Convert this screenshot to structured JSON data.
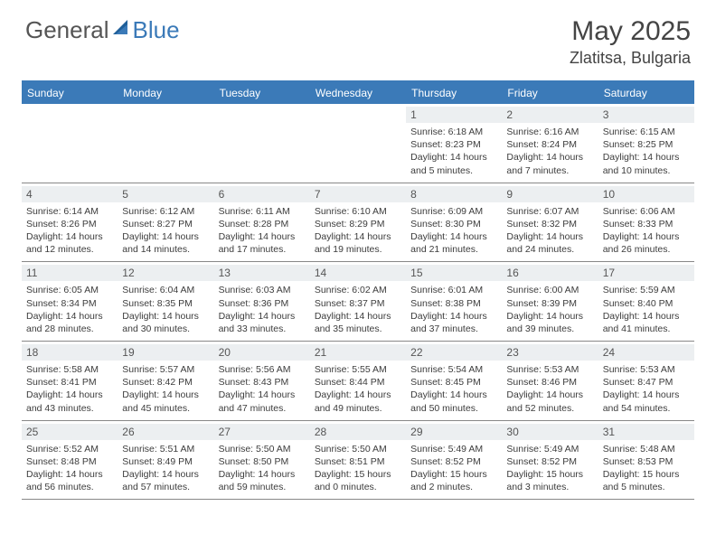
{
  "brand": {
    "left": "General",
    "right": "Blue"
  },
  "title": "May 2025",
  "location": "Zlatitsa, Bulgaria",
  "colors": {
    "header_bar": "#3b7ab8",
    "daynum_bg": "#eceff1",
    "text": "#333333",
    "row_border": "#888888",
    "background": "#ffffff"
  },
  "layout": {
    "columns": 7,
    "weeks": 5
  },
  "weekdays": [
    "Sunday",
    "Monday",
    "Tuesday",
    "Wednesday",
    "Thursday",
    "Friday",
    "Saturday"
  ],
  "days": [
    null,
    null,
    null,
    null,
    {
      "n": "1",
      "sr": "Sunrise: 6:18 AM",
      "ss": "Sunset: 8:23 PM",
      "d1": "Daylight: 14 hours",
      "d2": "and 5 minutes."
    },
    {
      "n": "2",
      "sr": "Sunrise: 6:16 AM",
      "ss": "Sunset: 8:24 PM",
      "d1": "Daylight: 14 hours",
      "d2": "and 7 minutes."
    },
    {
      "n": "3",
      "sr": "Sunrise: 6:15 AM",
      "ss": "Sunset: 8:25 PM",
      "d1": "Daylight: 14 hours",
      "d2": "and 10 minutes."
    },
    {
      "n": "4",
      "sr": "Sunrise: 6:14 AM",
      "ss": "Sunset: 8:26 PM",
      "d1": "Daylight: 14 hours",
      "d2": "and 12 minutes."
    },
    {
      "n": "5",
      "sr": "Sunrise: 6:12 AM",
      "ss": "Sunset: 8:27 PM",
      "d1": "Daylight: 14 hours",
      "d2": "and 14 minutes."
    },
    {
      "n": "6",
      "sr": "Sunrise: 6:11 AM",
      "ss": "Sunset: 8:28 PM",
      "d1": "Daylight: 14 hours",
      "d2": "and 17 minutes."
    },
    {
      "n": "7",
      "sr": "Sunrise: 6:10 AM",
      "ss": "Sunset: 8:29 PM",
      "d1": "Daylight: 14 hours",
      "d2": "and 19 minutes."
    },
    {
      "n": "8",
      "sr": "Sunrise: 6:09 AM",
      "ss": "Sunset: 8:30 PM",
      "d1": "Daylight: 14 hours",
      "d2": "and 21 minutes."
    },
    {
      "n": "9",
      "sr": "Sunrise: 6:07 AM",
      "ss": "Sunset: 8:32 PM",
      "d1": "Daylight: 14 hours",
      "d2": "and 24 minutes."
    },
    {
      "n": "10",
      "sr": "Sunrise: 6:06 AM",
      "ss": "Sunset: 8:33 PM",
      "d1": "Daylight: 14 hours",
      "d2": "and 26 minutes."
    },
    {
      "n": "11",
      "sr": "Sunrise: 6:05 AM",
      "ss": "Sunset: 8:34 PM",
      "d1": "Daylight: 14 hours",
      "d2": "and 28 minutes."
    },
    {
      "n": "12",
      "sr": "Sunrise: 6:04 AM",
      "ss": "Sunset: 8:35 PM",
      "d1": "Daylight: 14 hours",
      "d2": "and 30 minutes."
    },
    {
      "n": "13",
      "sr": "Sunrise: 6:03 AM",
      "ss": "Sunset: 8:36 PM",
      "d1": "Daylight: 14 hours",
      "d2": "and 33 minutes."
    },
    {
      "n": "14",
      "sr": "Sunrise: 6:02 AM",
      "ss": "Sunset: 8:37 PM",
      "d1": "Daylight: 14 hours",
      "d2": "and 35 minutes."
    },
    {
      "n": "15",
      "sr": "Sunrise: 6:01 AM",
      "ss": "Sunset: 8:38 PM",
      "d1": "Daylight: 14 hours",
      "d2": "and 37 minutes."
    },
    {
      "n": "16",
      "sr": "Sunrise: 6:00 AM",
      "ss": "Sunset: 8:39 PM",
      "d1": "Daylight: 14 hours",
      "d2": "and 39 minutes."
    },
    {
      "n": "17",
      "sr": "Sunrise: 5:59 AM",
      "ss": "Sunset: 8:40 PM",
      "d1": "Daylight: 14 hours",
      "d2": "and 41 minutes."
    },
    {
      "n": "18",
      "sr": "Sunrise: 5:58 AM",
      "ss": "Sunset: 8:41 PM",
      "d1": "Daylight: 14 hours",
      "d2": "and 43 minutes."
    },
    {
      "n": "19",
      "sr": "Sunrise: 5:57 AM",
      "ss": "Sunset: 8:42 PM",
      "d1": "Daylight: 14 hours",
      "d2": "and 45 minutes."
    },
    {
      "n": "20",
      "sr": "Sunrise: 5:56 AM",
      "ss": "Sunset: 8:43 PM",
      "d1": "Daylight: 14 hours",
      "d2": "and 47 minutes."
    },
    {
      "n": "21",
      "sr": "Sunrise: 5:55 AM",
      "ss": "Sunset: 8:44 PM",
      "d1": "Daylight: 14 hours",
      "d2": "and 49 minutes."
    },
    {
      "n": "22",
      "sr": "Sunrise: 5:54 AM",
      "ss": "Sunset: 8:45 PM",
      "d1": "Daylight: 14 hours",
      "d2": "and 50 minutes."
    },
    {
      "n": "23",
      "sr": "Sunrise: 5:53 AM",
      "ss": "Sunset: 8:46 PM",
      "d1": "Daylight: 14 hours",
      "d2": "and 52 minutes."
    },
    {
      "n": "24",
      "sr": "Sunrise: 5:53 AM",
      "ss": "Sunset: 8:47 PM",
      "d1": "Daylight: 14 hours",
      "d2": "and 54 minutes."
    },
    {
      "n": "25",
      "sr": "Sunrise: 5:52 AM",
      "ss": "Sunset: 8:48 PM",
      "d1": "Daylight: 14 hours",
      "d2": "and 56 minutes."
    },
    {
      "n": "26",
      "sr": "Sunrise: 5:51 AM",
      "ss": "Sunset: 8:49 PM",
      "d1": "Daylight: 14 hours",
      "d2": "and 57 minutes."
    },
    {
      "n": "27",
      "sr": "Sunrise: 5:50 AM",
      "ss": "Sunset: 8:50 PM",
      "d1": "Daylight: 14 hours",
      "d2": "and 59 minutes."
    },
    {
      "n": "28",
      "sr": "Sunrise: 5:50 AM",
      "ss": "Sunset: 8:51 PM",
      "d1": "Daylight: 15 hours",
      "d2": "and 0 minutes."
    },
    {
      "n": "29",
      "sr": "Sunrise: 5:49 AM",
      "ss": "Sunset: 8:52 PM",
      "d1": "Daylight: 15 hours",
      "d2": "and 2 minutes."
    },
    {
      "n": "30",
      "sr": "Sunrise: 5:49 AM",
      "ss": "Sunset: 8:52 PM",
      "d1": "Daylight: 15 hours",
      "d2": "and 3 minutes."
    },
    {
      "n": "31",
      "sr": "Sunrise: 5:48 AM",
      "ss": "Sunset: 8:53 PM",
      "d1": "Daylight: 15 hours",
      "d2": "and 5 minutes."
    }
  ]
}
